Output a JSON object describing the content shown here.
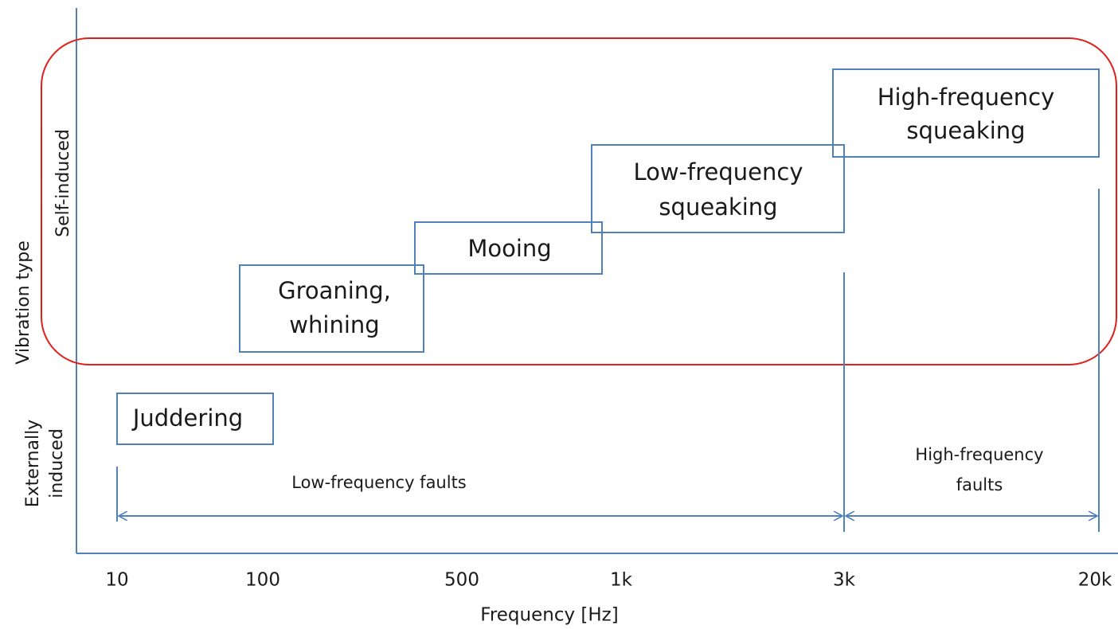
{
  "x_axis": {
    "label": "Frequency [Hz]",
    "ticks": [
      "10",
      "100",
      "500",
      "1k",
      "3k",
      "20k"
    ]
  },
  "y_axis": {
    "label": "Vibration type",
    "self_induced": "Self-induced",
    "externally_induced": [
      "Externally",
      "induced"
    ]
  },
  "boxes": [
    {
      "lines": [
        "Juddering"
      ]
    },
    {
      "lines": [
        "Groaning,",
        "whining"
      ]
    },
    {
      "lines": [
        "Mooing"
      ]
    },
    {
      "lines": [
        "Low-frequency",
        "squeaking"
      ]
    },
    {
      "lines": [
        "High-frequency",
        "squeaking"
      ]
    }
  ],
  "ranges": [
    {
      "lines": [
        "Low-frequency faults"
      ]
    },
    {
      "lines": [
        "High-frequency",
        "faults"
      ]
    }
  ]
}
